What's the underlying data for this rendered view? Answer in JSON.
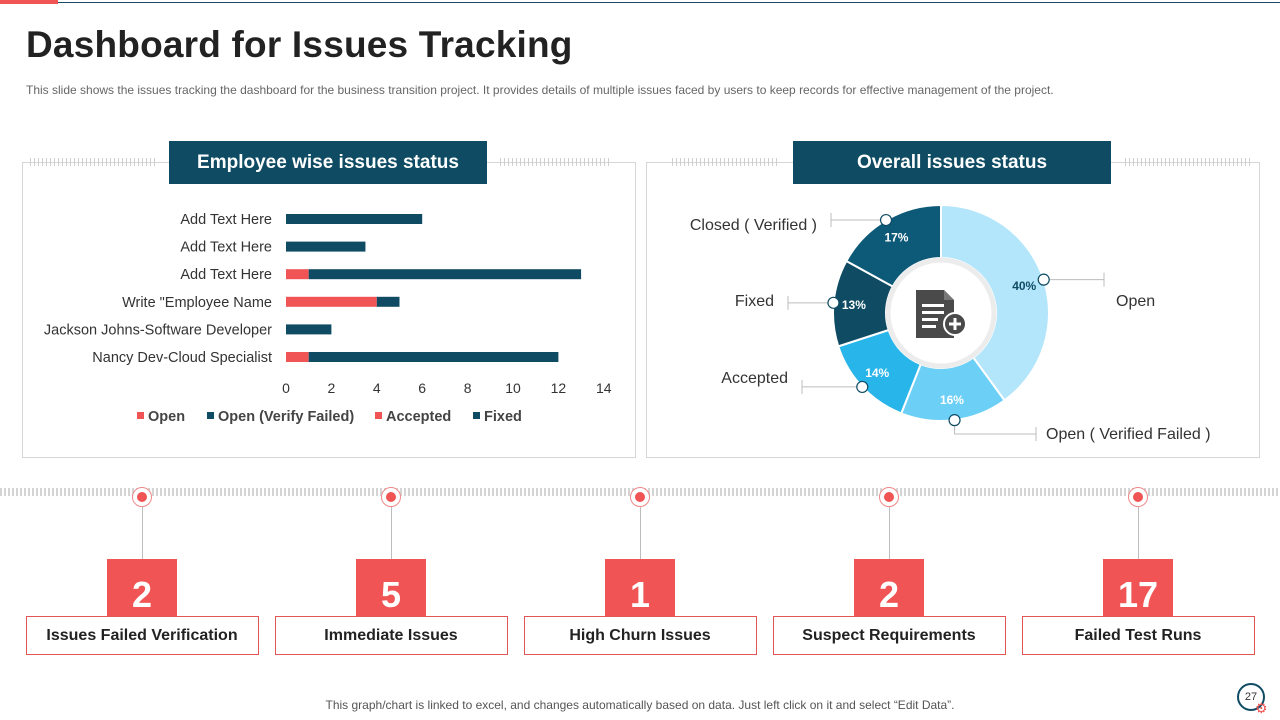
{
  "title": "Dashboard for Issues Tracking",
  "subtitle": "This slide shows the issues tracking the dashboard for the business transition project. It provides details of multiple issues faced by users to keep records for effective  management  of the project.",
  "panels": {
    "left_header": "Employee wise issues status",
    "right_header": "Overall issues status"
  },
  "chart_data": [
    {
      "type": "bar",
      "orientation": "horizontal",
      "stacked": true,
      "title": "Employee wise issues status",
      "categories": [
        "Add Text Here",
        "Add Text Here",
        "Add Text Here",
        "Write \"Employee Name",
        "Jackson Johns-Software Developer ",
        "Nancy Dev-Cloud Specialist"
      ],
      "series": [
        {
          "name": "Open",
          "color": "#f05454",
          "values": [
            0,
            0,
            0,
            0,
            0,
            0
          ]
        },
        {
          "name": "Open (Verify Failed)",
          "color": "#0f4c64",
          "values": [
            0,
            0,
            0,
            0,
            0,
            0
          ]
        },
        {
          "name": "Accepted",
          "color": "#f05454",
          "values": [
            0,
            0,
            1,
            4,
            0,
            1
          ]
        },
        {
          "name": "Fixed",
          "color": "#0f4c64",
          "values": [
            6,
            3.5,
            12,
            1,
            2,
            11
          ]
        }
      ],
      "xlim": [
        0,
        14
      ],
      "xticks": [
        "0",
        "2",
        "4",
        "6",
        "8",
        "10",
        "12",
        "14"
      ],
      "legend": "bottom"
    },
    {
      "type": "pie",
      "donut": true,
      "title": "Overall issues status",
      "slices": [
        {
          "label": "Open",
          "value": 40,
          "text": "40%",
          "color": "#b3e5fb"
        },
        {
          "label": "Open ( Verified Failed )",
          "value": 16,
          "text": "16%",
          "color": "#6ccff6"
        },
        {
          "label": "Accepted",
          "value": 14,
          "text": "14%",
          "color": "#28b5ea"
        },
        {
          "label": "Fixed",
          "value": 13,
          "text": "13%",
          "color": "#0f4c64"
        },
        {
          "label": "Closed ( Verified )",
          "value": 17,
          "text": "17%",
          "color": "#0d5978"
        }
      ],
      "center_icon": "document-add-icon"
    }
  ],
  "kpis": [
    {
      "value": "2",
      "label": "Issues Failed Verification"
    },
    {
      "value": "5",
      "label": "Immediate Issues"
    },
    {
      "value": "1",
      "label": "High Churn Issues"
    },
    {
      "value": "2",
      "label": "Suspect Requirements"
    },
    {
      "value": "17",
      "label": "Failed Test Runs"
    }
  ],
  "footer": "This graph/chart is linked to excel, and changes automatically based on data. Just left click on it and select “Edit Data”.",
  "page_number": "27",
  "accent_color": "#f05454",
  "brand_color": "#0f4c64"
}
